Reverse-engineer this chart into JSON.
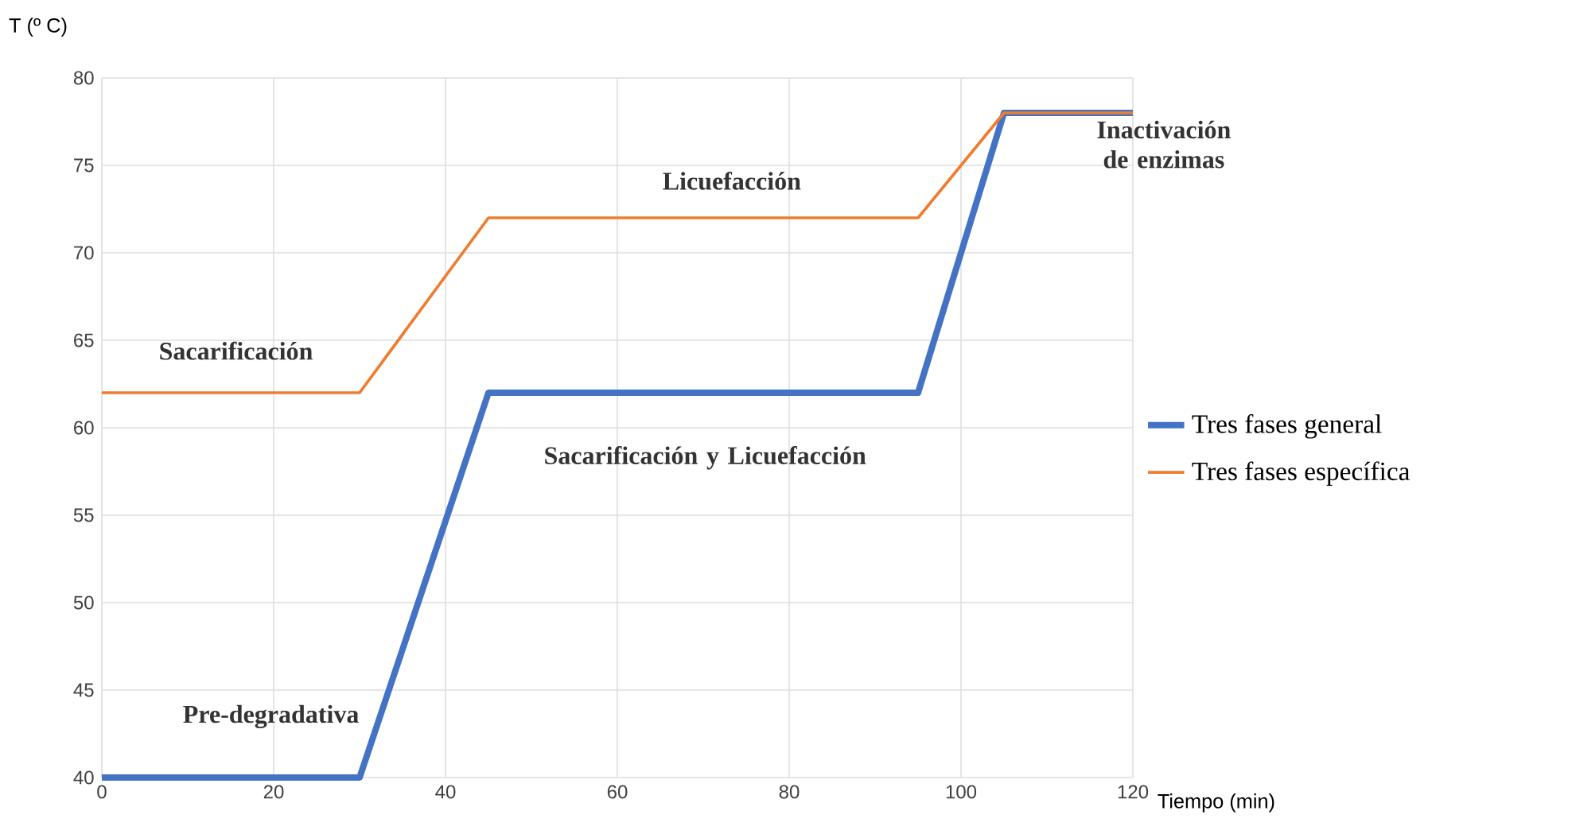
{
  "chart_data": {
    "type": "line",
    "xlabel": "Tiempo (min)",
    "ylabel": "T (º C)",
    "x": [
      0,
      30,
      45,
      95,
      105,
      120
    ],
    "series": [
      {
        "name": "Tres fases general",
        "color": "#4472c4",
        "values": [
          40,
          40,
          62,
          62,
          78,
          78
        ]
      },
      {
        "name": "Tres fases específica",
        "color": "#ed7d31",
        "values": [
          62,
          62,
          72,
          72,
          78,
          78
        ]
      }
    ],
    "xlim": [
      0,
      120
    ],
    "xticks": [
      0,
      20,
      40,
      60,
      80,
      100,
      120
    ],
    "ylim": [
      40,
      80
    ],
    "yticks": [
      40,
      45,
      50,
      55,
      60,
      65,
      70,
      75,
      80
    ],
    "grid": true,
    "legend": "right",
    "marker": "none",
    "line_style": "solid",
    "annotations": [
      "Sacarificación",
      "Pre-degradativa",
      "Licuefacción",
      "Sacarificación y Licuefacción",
      "Inactivación de enzimas"
    ]
  }
}
